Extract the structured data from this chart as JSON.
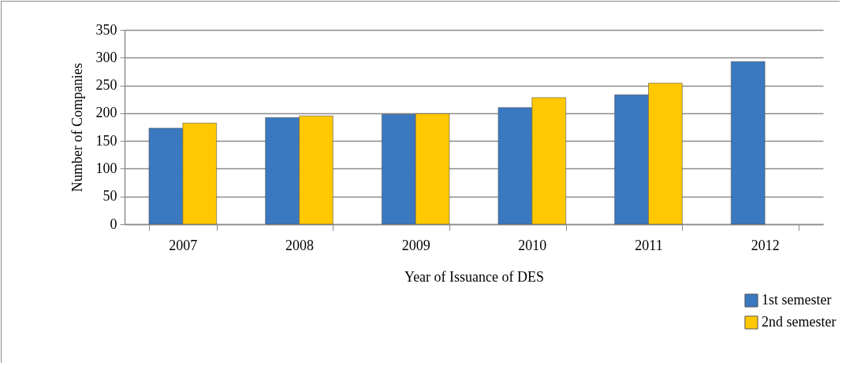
{
  "chart_data": {
    "type": "bar",
    "xlabel": "Year of Issuance of DES",
    "ylabel": "Number of Companies",
    "categories": [
      "2007",
      "2008",
      "2009",
      "2010",
      "2011",
      "2012"
    ],
    "series": [
      {
        "name": "1st semester",
        "color": "#3a78c0",
        "values": [
          173,
          192,
          198,
          210,
          233,
          293
        ]
      },
      {
        "name": "2nd semester",
        "color": "#ffc800",
        "values": [
          182,
          195,
          199,
          228,
          254,
          null
        ]
      }
    ],
    "ylim": [
      0,
      350
    ],
    "yticks": [
      0,
      50,
      100,
      150,
      200,
      250,
      300,
      350
    ],
    "grid": "y",
    "legend": "bottom right"
  }
}
